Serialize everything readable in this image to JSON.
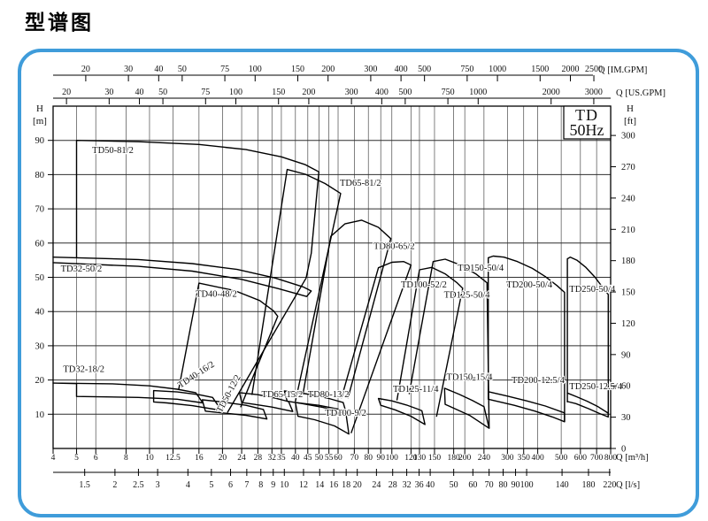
{
  "title": "型谱图",
  "corner_box": {
    "line1": "TD",
    "line2": "50Hz"
  },
  "colors": {
    "panel_border": "#3f9cda",
    "grid_v": "#4a4a4a",
    "grid_h": "#2f2f2f",
    "axis": "#000000",
    "curve": "#000000",
    "text": "#111111"
  },
  "chart_data": {
    "type": "line",
    "subtype": "pump-selection-envelope",
    "x_scale": "log",
    "x_range_m3h": [
      4,
      800
    ],
    "y_range_m": [
      0,
      100
    ],
    "grid": true,
    "x_axes": {
      "im_gpm": {
        "label": "Q [IM.GPM]",
        "ticks": [
          20,
          30,
          40,
          50,
          75,
          100,
          150,
          200,
          300,
          400,
          500,
          750,
          1000,
          1500,
          2000,
          2500
        ],
        "per_m3h": 3.66615
      },
      "us_gpm": {
        "label": "Q [US.GPM]",
        "ticks": [
          20,
          30,
          40,
          50,
          75,
          100,
          150,
          200,
          300,
          400,
          500,
          750,
          1000,
          2000,
          3000
        ],
        "per_m3h": 4.40287
      },
      "m3h": {
        "label": "Q [m³/h]",
        "ticks": [
          4,
          5,
          6,
          8,
          10,
          12.5,
          16,
          20,
          24,
          28,
          32,
          35,
          40,
          45,
          50,
          55,
          60,
          70,
          80,
          90,
          100,
          120,
          130,
          150,
          180,
          200,
          240,
          300,
          350,
          400,
          500,
          600,
          700,
          800
        ]
      },
      "ls": {
        "label": "Q [l/s]",
        "ticks": [
          1.5,
          2,
          2.5,
          3,
          4,
          5,
          6,
          7,
          8,
          9,
          10,
          12,
          14,
          16,
          18,
          20,
          24,
          28,
          32,
          36,
          40,
          50,
          60,
          70,
          80,
          90,
          100,
          140,
          180,
          220
        ],
        "m3h_per_unit": 3.6
      }
    },
    "y_axes": {
      "m": {
        "name": "H",
        "unit": "[m]",
        "ticks": [
          10,
          20,
          30,
          40,
          50,
          60,
          70,
          80,
          90
        ]
      },
      "ft": {
        "name": "H",
        "unit": "[ft]",
        "ticks": [
          0,
          30,
          60,
          90,
          120,
          150,
          180,
          210,
          240,
          270,
          300
        ],
        "m_per_ft": 0.3048
      }
    },
    "regions": [
      {
        "label": "TD32-50/2",
        "label_at": [
          4.3,
          51.7
        ],
        "rotation": 0,
        "closed": false,
        "points": [
          [
            4,
            55.9
          ],
          [
            9,
            55.2
          ],
          [
            15,
            54
          ],
          [
            23,
            52.3
          ],
          [
            33,
            49.8
          ],
          [
            43,
            47.2
          ],
          [
            46.5,
            46
          ],
          [
            44.5,
            44.4
          ],
          [
            34,
            46.7
          ],
          [
            24,
            49.4
          ],
          [
            15,
            51.8
          ],
          [
            9,
            53.2
          ],
          [
            4,
            54.3
          ]
        ]
      },
      {
        "label": "TD50-81/2",
        "label_at": [
          5.8,
          86.3
        ],
        "rotation": 0,
        "closed": false,
        "points": [
          [
            5,
            55.9
          ],
          [
            5,
            90
          ],
          [
            9,
            89.6
          ],
          [
            16,
            88.8
          ],
          [
            25,
            87.3
          ],
          [
            35,
            85.2
          ],
          [
            44,
            82.9
          ],
          [
            50,
            80.8
          ],
          [
            46.5,
            57
          ],
          [
            44.3,
            49.8
          ],
          [
            21,
            10.6
          ]
        ]
      },
      {
        "label": "TD40-48/2",
        "label_at": [
          15.5,
          44.3
        ],
        "rotation": 0,
        "closed": false,
        "points": [
          [
            13.2,
            17.4
          ],
          [
            16,
            48.3
          ],
          [
            22.5,
            46.1
          ],
          [
            28.5,
            43.2
          ],
          [
            32.5,
            40.2
          ],
          [
            33.8,
            38.6
          ],
          [
            23.8,
            12.2
          ]
        ]
      },
      {
        "label": "TD32-18/2",
        "label_at": [
          4.4,
          22.3
        ],
        "rotation": 0,
        "closed": false,
        "points": [
          [
            4,
            19.1
          ],
          [
            7,
            18.9
          ],
          [
            10,
            18.3
          ],
          [
            13,
            17.3
          ],
          [
            15.5,
            16.3
          ],
          [
            16.6,
            13.3
          ],
          [
            13,
            14.4
          ],
          [
            9,
            14.9
          ],
          [
            5,
            15.2
          ],
          [
            5,
            18.95
          ],
          [
            4,
            19.1
          ]
        ]
      },
      {
        "label": "TD40-16/2",
        "label_at": [
          13.4,
          17.6
        ],
        "rotation": -33,
        "closed": true,
        "points": [
          [
            10.4,
            16.9
          ],
          [
            13,
            16.5
          ],
          [
            16,
            15.7
          ],
          [
            18.2,
            14.9
          ],
          [
            19.8,
            11.1
          ],
          [
            15,
            12.5
          ],
          [
            11.8,
            13.3
          ],
          [
            10.4,
            13.6
          ]
        ]
      },
      {
        "label": "TD50-12/2",
        "label_at": [
          19.8,
          10.3
        ],
        "rotation": -62,
        "closed": true,
        "points": [
          [
            16.5,
            14.2
          ],
          [
            20,
            13.6
          ],
          [
            25,
            12.6
          ],
          [
            29.5,
            11.4
          ],
          [
            30.5,
            8.6
          ],
          [
            25,
            9.7
          ],
          [
            20,
            10.4
          ],
          [
            17,
            10.9
          ]
        ]
      },
      {
        "label": "TD65-81/2",
        "label_at": [
          61,
          76.8
        ],
        "rotation": 0,
        "closed": false,
        "points": [
          [
            26.5,
            15.8
          ],
          [
            37,
            81.5
          ],
          [
            44,
            80.1
          ],
          [
            53,
            77.4
          ],
          [
            61.5,
            74.5
          ],
          [
            40,
            13.8
          ]
        ]
      },
      {
        "label": "TD65-15/2",
        "label_at": [
          29,
          15.0
        ],
        "rotation": 0,
        "closed": true,
        "points": [
          [
            23.5,
            16.3
          ],
          [
            28,
            15.7
          ],
          [
            33,
            14.7
          ],
          [
            37.5,
            13.7
          ],
          [
            39,
            10.8
          ],
          [
            32,
            12.1
          ],
          [
            27,
            12.9
          ],
          [
            24,
            13.4
          ]
        ]
      },
      {
        "label": "TD80-65/2",
        "label_at": [
          84,
          58.3
        ],
        "rotation": 0,
        "closed": false,
        "points": [
          [
            43,
            16
          ],
          [
            56,
            62
          ],
          [
            64,
            65.6
          ],
          [
            75,
            66.7
          ],
          [
            88,
            64.6
          ],
          [
            99,
            61.3
          ],
          [
            66,
            14.8
          ]
        ]
      },
      {
        "label": "TD80-13/2",
        "label_at": [
          45,
          15.0
        ],
        "rotation": 0,
        "closed": true,
        "points": [
          [
            36,
            16.8
          ],
          [
            45,
            15.9
          ],
          [
            55,
            14.6
          ],
          [
            63,
            13.4
          ],
          [
            65,
            10.1
          ],
          [
            52,
            12
          ],
          [
            42,
            13.2
          ],
          [
            37,
            13.8
          ]
        ]
      },
      {
        "label": "TD100-52/2",
        "label_at": [
          109,
          47
        ],
        "rotation": 0,
        "closed": false,
        "points": [
          [
            62,
            14.8
          ],
          [
            88,
            52.8
          ],
          [
            100,
            54.4
          ],
          [
            112,
            54.6
          ],
          [
            120,
            53.6
          ],
          [
            68,
            4.6
          ]
        ]
      },
      {
        "label": "TD100-9/2",
        "label_at": [
          53,
          9.6
        ],
        "rotation": 0,
        "closed": true,
        "points": [
          [
            40,
            13.4
          ],
          [
            50,
            12.6
          ],
          [
            60,
            11.5
          ],
          [
            64.5,
            10.8
          ],
          [
            66.5,
            4.2
          ],
          [
            58,
            6.6
          ],
          [
            48,
            8.4
          ],
          [
            41,
            9.4
          ]
        ]
      },
      {
        "label": "TD125-50/4",
        "label_at": [
          164,
          44
        ],
        "rotation": 0,
        "closed": false,
        "points": [
          [
            105,
            14.2
          ],
          [
            130,
            52.2
          ],
          [
            146,
            52.9
          ],
          [
            166,
            51
          ],
          [
            186,
            48.4
          ],
          [
            196,
            46.8
          ],
          [
            153,
            9.4
          ]
        ]
      },
      {
        "label": "TD125-11/4",
        "label_at": [
          101,
          16.5
        ],
        "rotation": 0,
        "closed": true,
        "points": [
          [
            88,
            14.6
          ],
          [
            100,
            13.9
          ],
          [
            115,
            12.7
          ],
          [
            128,
            11.5
          ],
          [
            133,
            11
          ],
          [
            137,
            7
          ],
          [
            120,
            9.4
          ],
          [
            103,
            11.3
          ],
          [
            90,
            12.6
          ]
        ]
      },
      {
        "label": "TD150-50/4",
        "label_at": [
          187,
          52
        ],
        "rotation": 0,
        "closed": false,
        "points": [
          [
            118,
            16
          ],
          [
            148,
            54.6
          ],
          [
            166,
            55.3
          ],
          [
            192,
            53.6
          ],
          [
            222,
            51
          ],
          [
            247,
            48.4
          ],
          [
            252,
            6
          ]
        ]
      },
      {
        "label": "TD150-15/4",
        "label_at": [
          168,
          20
        ],
        "rotation": 0,
        "closed": true,
        "points": [
          [
            165,
            17.6
          ],
          [
            190,
            15.8
          ],
          [
            215,
            14
          ],
          [
            240,
            12.2
          ],
          [
            252,
            5.9
          ],
          [
            210,
            9.6
          ],
          [
            176,
            12.1
          ],
          [
            166,
            12.9
          ]
        ]
      },
      {
        "label": "TD200-50/4",
        "label_at": [
          297,
          47
        ],
        "rotation": 0,
        "closed": false,
        "points": [
          [
            250,
            14.6
          ],
          [
            250,
            55.7
          ],
          [
            262,
            56.2
          ],
          [
            290,
            55.9
          ],
          [
            330,
            54.6
          ],
          [
            380,
            52.6
          ],
          [
            430,
            50.2
          ],
          [
            480,
            47.6
          ],
          [
            516,
            45.6
          ],
          [
            516,
            7.8
          ]
        ]
      },
      {
        "label": "TD200-12.5/4",
        "label_at": [
          312,
          19.1
        ],
        "rotation": 0,
        "closed": false,
        "points": [
          [
            250,
            16.6
          ],
          [
            300,
            15.3
          ],
          [
            360,
            13.9
          ],
          [
            430,
            12.4
          ],
          [
            516,
            10.4
          ],
          [
            516,
            7.8
          ],
          [
            460,
            9.2
          ],
          [
            390,
            10.9
          ],
          [
            320,
            12.6
          ],
          [
            260,
            14.1
          ],
          [
            250,
            14.4
          ]
        ]
      },
      {
        "label": "TD250-50/4",
        "label_at": [
          540,
          45.7
        ],
        "rotation": 0,
        "closed": false,
        "points": [
          [
            530,
            13.6
          ],
          [
            530,
            55.4
          ],
          [
            545,
            55.9
          ],
          [
            580,
            55
          ],
          [
            630,
            53
          ],
          [
            690,
            50
          ],
          [
            750,
            46.6
          ],
          [
            782,
            45
          ],
          [
            782,
            9.2
          ]
        ]
      },
      {
        "label": "TD250-12.5/4",
        "label_at": [
          540,
          17.3
        ],
        "rotation": 0,
        "closed": false,
        "points": [
          [
            530,
            16.2
          ],
          [
            580,
            15.1
          ],
          [
            640,
            13.8
          ],
          [
            710,
            12.2
          ],
          [
            782,
            10.3
          ],
          [
            782,
            9.2
          ],
          [
            720,
            10.2
          ],
          [
            650,
            11.6
          ],
          [
            575,
            13.1
          ],
          [
            532,
            13.7
          ],
          [
            530,
            13.8
          ]
        ]
      }
    ]
  }
}
